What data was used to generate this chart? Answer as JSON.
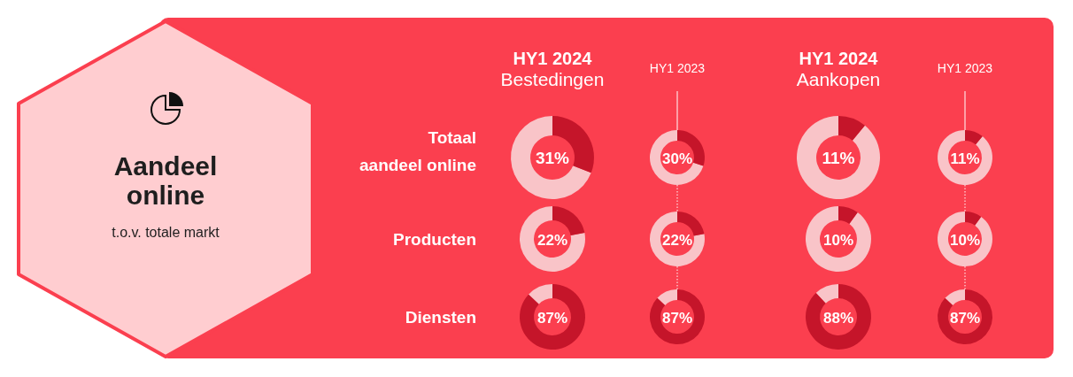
{
  "chart_data": [
    {
      "type": "other",
      "title": "Aandeel online",
      "subtitle": "t.o.v. totale markt",
      "color": "#fb3f4f",
      "annotations": [
        "HY1 2024",
        "Bestedingen",
        "HY1 2023",
        "HY1 2024",
        "Aankopen",
        "HY1 2023",
        "Totaal aandeel online",
        "Producten",
        "Diensten"
      ]
    },
    {
      "type": "donut",
      "categories": [
        null,
        null
      ],
      "values": [
        31,
        69
      ],
      "colors": [
        "#c5152a",
        "#f9c4c8"
      ],
      "annotations": [
        "31%"
      ]
    },
    {
      "type": "donut",
      "categories": [
        null,
        null
      ],
      "values": [
        30,
        70
      ],
      "colors": [
        "#c5152a",
        "#f9c4c8"
      ],
      "annotations": [
        "30%"
      ]
    },
    {
      "type": "donut",
      "categories": [
        null,
        null
      ],
      "values": [
        11,
        89
      ],
      "colors": [
        "#c5152a",
        "#f9c4c8"
      ],
      "annotations": [
        "11%"
      ]
    },
    {
      "type": "donut",
      "categories": [
        null,
        null
      ],
      "values": [
        11,
        89
      ],
      "colors": [
        "#c5152a",
        "#f9c4c8"
      ],
      "annotations": [
        "11%"
      ]
    },
    {
      "type": "donut",
      "categories": [
        null,
        null
      ],
      "values": [
        22,
        78
      ],
      "colors": [
        "#c5152a",
        "#f9c4c8"
      ],
      "annotations": [
        "22%"
      ]
    },
    {
      "type": "donut",
      "categories": [
        null,
        null
      ],
      "values": [
        22,
        78
      ],
      "colors": [
        "#c5152a",
        "#f9c4c8"
      ],
      "annotations": [
        "22%"
      ]
    },
    {
      "type": "donut",
      "categories": [
        null,
        null
      ],
      "values": [
        10,
        90
      ],
      "colors": [
        "#c5152a",
        "#f9c4c8"
      ],
      "annotations": [
        "10%"
      ]
    },
    {
      "type": "donut",
      "categories": [
        null,
        null
      ],
      "values": [
        10,
        90
      ],
      "colors": [
        "#c5152a",
        "#f9c4c8"
      ],
      "annotations": [
        "10%"
      ]
    },
    {
      "type": "donut",
      "categories": [
        null,
        null
      ],
      "values": [
        87,
        13
      ],
      "colors": [
        "#c5152a",
        "#f9c4c8"
      ],
      "annotations": [
        "87%"
      ]
    },
    {
      "type": "donut",
      "categories": [
        null,
        null
      ],
      "values": [
        87,
        13
      ],
      "colors": [
        "#c5152a",
        "#f9c4c8"
      ],
      "annotations": [
        "87%"
      ]
    },
    {
      "type": "donut",
      "categories": [
        null,
        null
      ],
      "values": [
        88,
        12
      ],
      "colors": [
        "#c5152a",
        "#f9c4c8"
      ],
      "annotations": [
        "88%"
      ]
    },
    {
      "type": "donut",
      "categories": [
        null,
        null
      ],
      "values": [
        87,
        13
      ],
      "colors": [
        "#c5152a",
        "#f9c4c8"
      ],
      "annotations": [
        "87%"
      ]
    }
  ]
}
